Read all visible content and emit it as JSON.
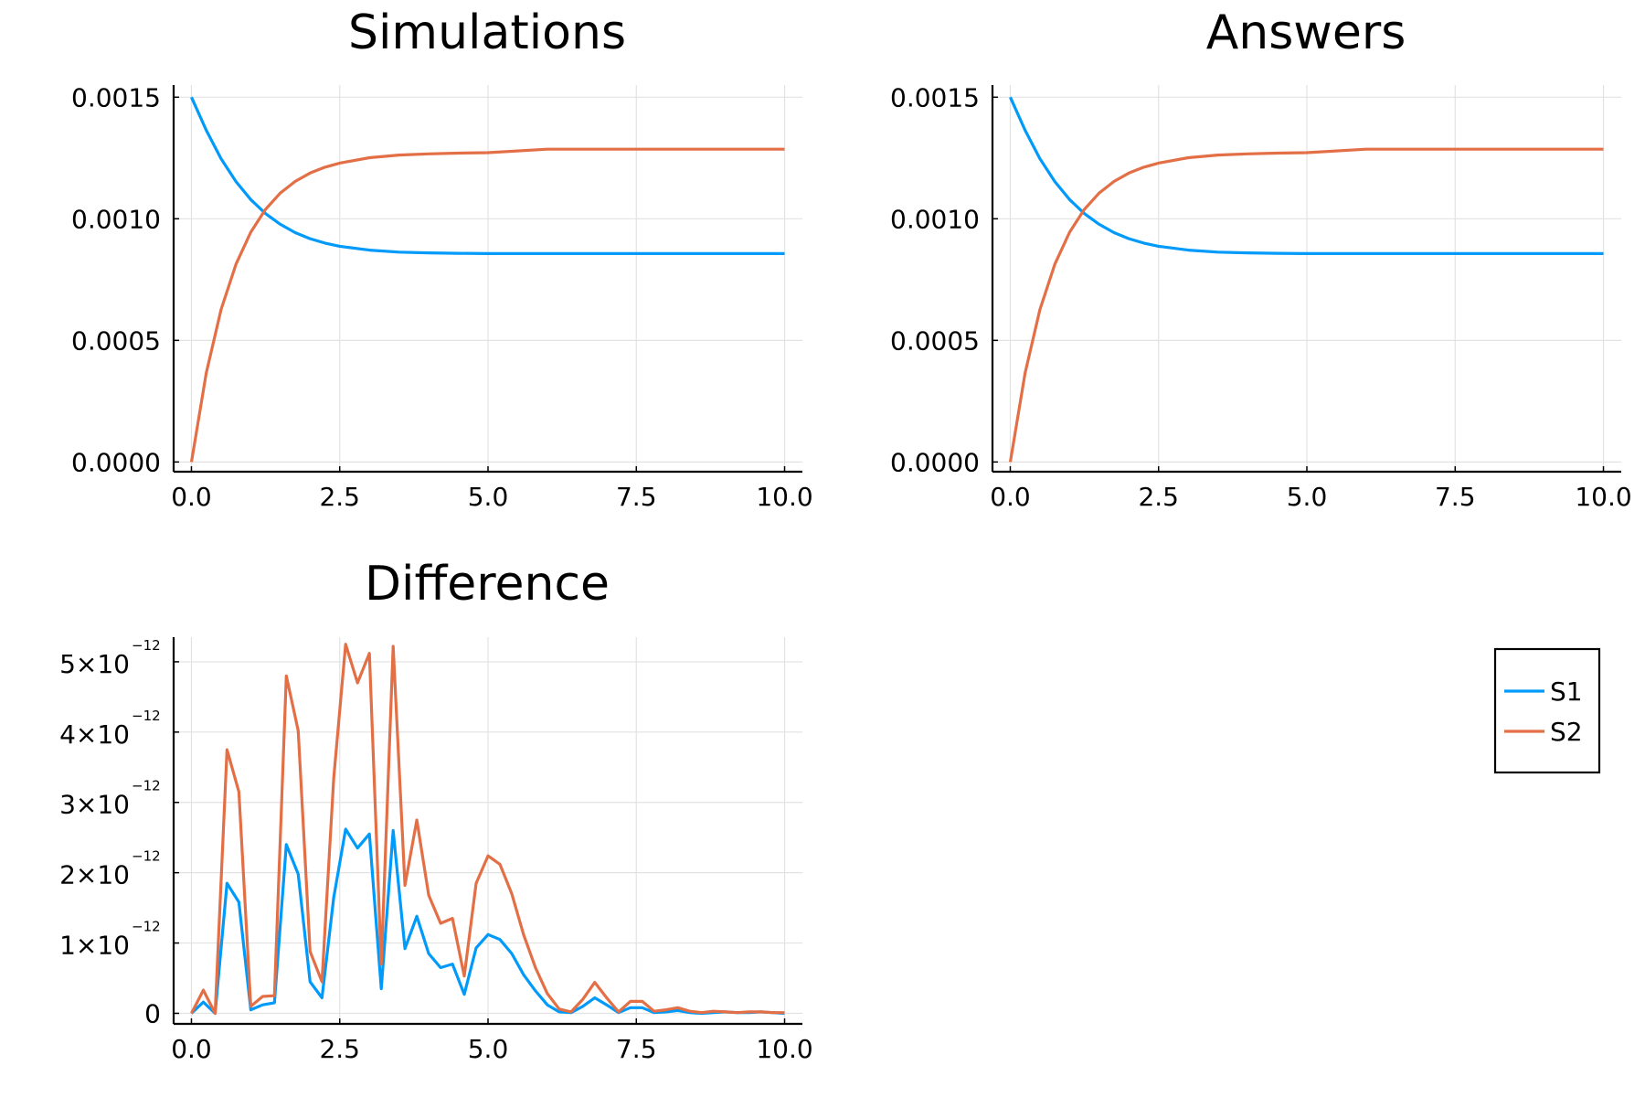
{
  "chart_data": [
    {
      "type": "line",
      "title": "Simulations",
      "xlabel": "",
      "ylabel": "",
      "xlim": [
        0,
        10
      ],
      "ylim": [
        -4e-05,
        0.00155
      ],
      "x_ticks": [
        0,
        2.5,
        5,
        7.5,
        10
      ],
      "x_tick_labels": [
        "0.0",
        "2.5",
        "5.0",
        "7.5",
        "10.0"
      ],
      "y_ticks": [
        0,
        0.0005,
        0.001,
        0.0015
      ],
      "y_tick_labels": [
        "0.0000",
        "0.0005",
        "0.0010",
        "0.0015"
      ],
      "grid": true,
      "series": [
        {
          "name": "S1",
          "color": "#009AFA",
          "x": [
            0,
            0.25,
            0.5,
            0.75,
            1,
            1.25,
            1.5,
            1.75,
            2,
            2.25,
            2.5,
            3,
            3.5,
            4,
            4.5,
            5,
            6,
            7,
            8,
            9,
            10
          ],
          "y": [
            0.0015,
            0.001364,
            0.001247,
            0.001153,
            0.001079,
            0.001021,
            0.000977,
            0.000943,
            0.000918,
            0.0009,
            0.000887,
            0.000871,
            0.000863,
            0.00086,
            0.000858,
            0.000857,
            0.000857,
            0.000857,
            0.000857,
            0.000857,
            0.000857
          ]
        },
        {
          "name": "S2",
          "color": "#E36F47",
          "x": [
            0,
            0.25,
            0.5,
            0.75,
            1,
            1.25,
            1.5,
            1.75,
            2,
            2.25,
            2.5,
            3,
            3.5,
            4,
            4.5,
            5,
            6,
            7,
            8,
            9,
            10
          ],
          "y": [
            0,
            0.000366,
            0.000627,
            0.000813,
            0.000945,
            0.001039,
            0.001106,
            0.001154,
            0.001188,
            0.001212,
            0.001229,
            0.001251,
            0.001262,
            0.001267,
            0.00127,
            0.001272,
            0.001286,
            0.001286,
            0.001286,
            0.001286,
            0.001286
          ]
        }
      ]
    },
    {
      "type": "line",
      "title": "Answers",
      "xlabel": "",
      "ylabel": "",
      "xlim": [
        0,
        10
      ],
      "ylim": [
        -4e-05,
        0.00155
      ],
      "x_ticks": [
        0,
        2.5,
        5,
        7.5,
        10
      ],
      "x_tick_labels": [
        "0.0",
        "2.5",
        "5.0",
        "7.5",
        "10.0"
      ],
      "y_ticks": [
        0,
        0.0005,
        0.001,
        0.0015
      ],
      "y_tick_labels": [
        "0.0000",
        "0.0005",
        "0.0010",
        "0.0015"
      ],
      "grid": true,
      "series": [
        {
          "name": "S1",
          "color": "#009AFA",
          "x": [
            0,
            0.25,
            0.5,
            0.75,
            1,
            1.25,
            1.5,
            1.75,
            2,
            2.25,
            2.5,
            3,
            3.5,
            4,
            4.5,
            5,
            6,
            7,
            8,
            9,
            10
          ],
          "y": [
            0.0015,
            0.001364,
            0.001247,
            0.001153,
            0.001079,
            0.001021,
            0.000977,
            0.000943,
            0.000918,
            0.0009,
            0.000887,
            0.000871,
            0.000863,
            0.00086,
            0.000858,
            0.000857,
            0.000857,
            0.000857,
            0.000857,
            0.000857,
            0.000857
          ]
        },
        {
          "name": "S2",
          "color": "#E36F47",
          "x": [
            0,
            0.25,
            0.5,
            0.75,
            1,
            1.25,
            1.5,
            1.75,
            2,
            2.25,
            2.5,
            3,
            3.5,
            4,
            4.5,
            5,
            6,
            7,
            8,
            9,
            10
          ],
          "y": [
            0,
            0.000366,
            0.000627,
            0.000813,
            0.000945,
            0.001039,
            0.001106,
            0.001154,
            0.001188,
            0.001212,
            0.001229,
            0.001251,
            0.001262,
            0.001267,
            0.00127,
            0.001272,
            0.001286,
            0.001286,
            0.001286,
            0.001286,
            0.001286
          ]
        }
      ]
    },
    {
      "type": "line",
      "title": "Difference",
      "xlabel": "",
      "ylabel": "",
      "xlim": [
        0,
        10
      ],
      "ylim": [
        -1.5e-13,
        5.35e-12
      ],
      "x_ticks": [
        0,
        2.5,
        5,
        7.5,
        10
      ],
      "x_tick_labels": [
        "0.0",
        "2.5",
        "5.0",
        "7.5",
        "10.0"
      ],
      "y_ticks": [
        0,
        1e-12,
        2e-12,
        3e-12,
        4e-12,
        5e-12
      ],
      "y_tick_labels": [
        {
          "base": "0",
          "exp": ""
        },
        {
          "base": "1×10",
          "exp": "−12"
        },
        {
          "base": "2×10",
          "exp": "−12"
        },
        {
          "base": "3×10",
          "exp": "−12"
        },
        {
          "base": "4×10",
          "exp": "−12"
        },
        {
          "base": "5×10",
          "exp": "−12"
        }
      ],
      "grid": true,
      "legend": {
        "placement": "outside-right",
        "entries": [
          "S1",
          "S2"
        ]
      },
      "series": [
        {
          "name": "S1",
          "color": "#009AFA",
          "x": [
            0,
            0.2,
            0.4,
            0.6,
            0.8,
            1.0,
            1.2,
            1.4,
            1.6,
            1.8,
            2.0,
            2.2,
            2.4,
            2.6,
            2.8,
            3.0,
            3.2,
            3.4,
            3.6,
            3.8,
            4.0,
            4.2,
            4.4,
            4.6,
            4.8,
            5.0,
            5.2,
            5.4,
            5.6,
            5.8,
            6.0,
            6.2,
            6.4,
            6.6,
            6.8,
            7.0,
            7.2,
            7.4,
            7.6,
            7.8,
            8.0,
            8.2,
            8.4,
            8.6,
            8.8,
            9.0,
            9.2,
            9.4,
            9.6,
            9.8,
            10.0
          ],
          "y": [
            0,
            1.6e-13,
            0,
            1.85e-12,
            1.58e-12,
            5e-14,
            1.2e-13,
            1.5e-13,
            2.4e-12,
            1.98e-12,
            4.5e-13,
            2.2e-13,
            1.65e-12,
            2.62e-12,
            2.35e-12,
            2.55e-12,
            3.5e-13,
            2.6e-12,
            9.2e-13,
            1.38e-12,
            8.5e-13,
            6.5e-13,
            7e-13,
            2.7e-13,
            9.3e-13,
            1.12e-12,
            1.05e-12,
            8.5e-13,
            5.5e-13,
            3.2e-13,
            1.2e-13,
            2e-14,
            1e-14,
            1e-13,
            2.2e-13,
            1.2e-13,
            1e-14,
            8e-14,
            8e-14,
            1e-14,
            2e-14,
            4e-14,
            1e-14,
            0,
            1e-14,
            2e-14,
            1e-14,
            1e-14,
            2e-14,
            1e-14,
            0
          ]
        },
        {
          "name": "S2",
          "color": "#E36F47",
          "x": [
            0,
            0.2,
            0.4,
            0.6,
            0.8,
            1.0,
            1.2,
            1.4,
            1.6,
            1.8,
            2.0,
            2.2,
            2.4,
            2.6,
            2.8,
            3.0,
            3.2,
            3.4,
            3.6,
            3.8,
            4.0,
            4.2,
            4.4,
            4.6,
            4.8,
            5.0,
            5.2,
            5.4,
            5.6,
            5.8,
            6.0,
            6.2,
            6.4,
            6.6,
            6.8,
            7.0,
            7.2,
            7.4,
            7.6,
            7.8,
            8.0,
            8.2,
            8.4,
            8.6,
            8.8,
            9.0,
            9.2,
            9.4,
            9.6,
            9.8,
            10.0
          ],
          "y": [
            0,
            3.3e-13,
            0,
            3.75e-12,
            3.15e-12,
            1e-13,
            2.4e-13,
            2.5e-13,
            4.8e-12,
            4.02e-12,
            8.8e-13,
            4.5e-13,
            3.35e-12,
            5.25e-12,
            4.7e-12,
            5.12e-12,
            7e-13,
            5.22e-12,
            1.82e-12,
            2.75e-12,
            1.68e-12,
            1.28e-12,
            1.35e-12,
            5.3e-13,
            1.85e-12,
            2.24e-12,
            2.12e-12,
            1.7e-12,
            1.12e-12,
            6.5e-13,
            2.8e-13,
            6e-14,
            2e-14,
            2e-13,
            4.4e-13,
            2.2e-13,
            2e-14,
            1.7e-13,
            1.7e-13,
            3e-14,
            5e-14,
            8e-14,
            3e-14,
            1e-14,
            3e-14,
            2e-14,
            1e-14,
            2e-14,
            2e-14,
            1e-14,
            1e-14
          ]
        }
      ]
    }
  ]
}
